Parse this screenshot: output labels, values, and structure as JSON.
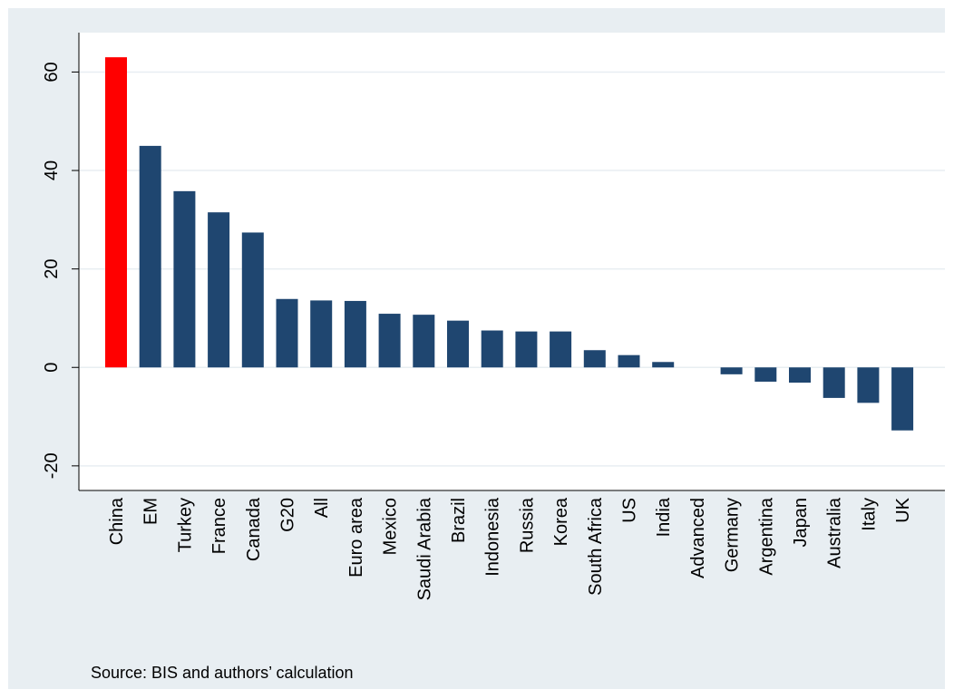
{
  "chart_data": {
    "type": "bar",
    "categories": [
      "China",
      "EM",
      "Turkey",
      "France",
      "Canada",
      "G20",
      "All",
      "Euro area",
      "Mexico",
      "Saudi Arabia",
      "Brazil",
      "Indonesia",
      "Russia",
      "Korea",
      "South Africa",
      "US",
      "India",
      "Advanced",
      "Germany",
      "Argentina",
      "Japan",
      "Australia",
      "Italy",
      "UK"
    ],
    "values": [
      63,
      45,
      35.8,
      31.5,
      27.4,
      13.9,
      13.6,
      13.5,
      10.9,
      10.7,
      9.5,
      7.5,
      7.3,
      7.3,
      3.5,
      2.5,
      1.1,
      0,
      -1.4,
      -2.9,
      -3.1,
      -6.2,
      -7.2,
      -12.8
    ],
    "colors": [
      "#ff0000",
      "#1f4670",
      "#1f4670",
      "#1f4670",
      "#1f4670",
      "#1f4670",
      "#1f4670",
      "#1f4670",
      "#1f4670",
      "#1f4670",
      "#1f4670",
      "#1f4670",
      "#1f4670",
      "#1f4670",
      "#1f4670",
      "#1f4670",
      "#1f4670",
      "#1f4670",
      "#1f4670",
      "#1f4670",
      "#1f4670",
      "#1f4670",
      "#1f4670",
      "#1f4670"
    ],
    "yticks": [
      -20,
      0,
      20,
      40,
      60
    ],
    "ylim": [
      -25,
      68
    ],
    "grid": true,
    "xlabel": "",
    "ylabel": "",
    "note": "Source:  BIS and authors’ calculation",
    "plot_background": "#ffffff",
    "figure_background": "#e8eef2"
  }
}
